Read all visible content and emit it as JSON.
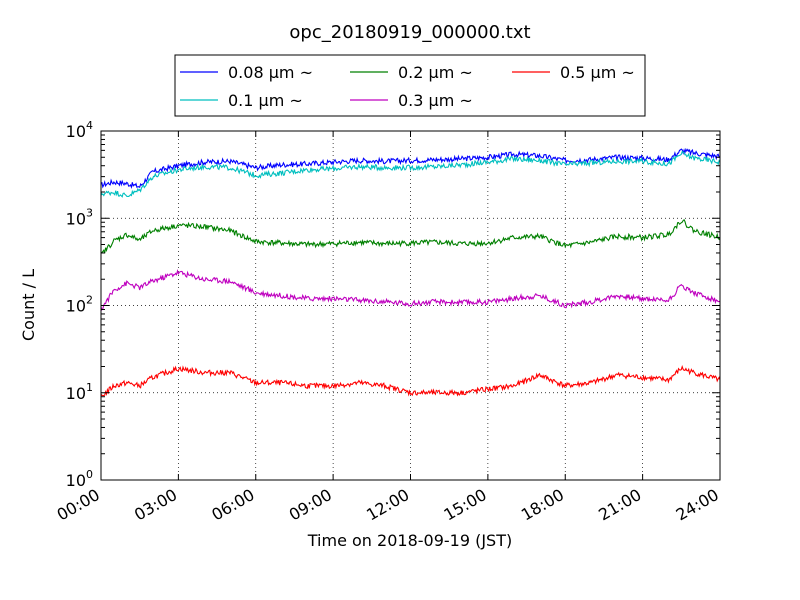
{
  "chart_data": {
    "type": "line",
    "title": "opc_20180919_000000.txt",
    "xlabel": "Time on 2018-09-19 (JST)",
    "ylabel": "Count / L",
    "x_ticks": [
      "00:00",
      "03:00",
      "06:00",
      "09:00",
      "12:00",
      "15:00",
      "18:00",
      "21:00",
      "24:00"
    ],
    "x_tick_hours": [
      0,
      3,
      6,
      9,
      12,
      15,
      18,
      21,
      24
    ],
    "xlim_hours": [
      0,
      24
    ],
    "yscale": "log",
    "ylim": [
      1,
      10000
    ],
    "y_ticks": [
      {
        "base": "10",
        "exp": "0"
      },
      {
        "base": "10",
        "exp": "1"
      },
      {
        "base": "10",
        "exp": "2"
      },
      {
        "base": "10",
        "exp": "3"
      },
      {
        "base": "10",
        "exp": "4"
      }
    ],
    "y_tick_values": [
      1,
      10,
      100,
      1000,
      10000
    ],
    "grid": true,
    "legend_position": "top",
    "series": [
      {
        "name": "0.08 μm ~",
        "color": "#0000ff",
        "x": [
          0,
          0.5,
          1,
          1.5,
          2,
          3,
          4,
          5,
          6,
          7,
          8,
          9,
          10,
          11,
          12,
          13,
          14,
          15,
          16,
          17,
          18,
          19,
          20,
          21,
          22,
          22.5,
          23,
          24
        ],
        "y": [
          2400,
          2600,
          2500,
          2300,
          3400,
          4000,
          4400,
          4500,
          3800,
          4100,
          4200,
          4400,
          4600,
          4500,
          4600,
          4700,
          4800,
          5000,
          5400,
          5200,
          4600,
          4700,
          5000,
          4900,
          4700,
          6000,
          5600,
          5100
        ]
      },
      {
        "name": "0.1 μm ~",
        "color": "#00bfbf",
        "x": [
          0,
          0.5,
          1,
          1.5,
          2,
          3,
          4,
          5,
          6,
          7,
          8,
          9,
          10,
          11,
          12,
          13,
          14,
          15,
          16,
          17,
          18,
          19,
          20,
          21,
          22,
          22.5,
          23,
          24
        ],
        "y": [
          1900,
          2000,
          1800,
          2100,
          3000,
          3600,
          3900,
          3800,
          3100,
          3300,
          3600,
          3700,
          3900,
          3800,
          3800,
          3900,
          4100,
          4400,
          4800,
          4600,
          4100,
          4300,
          4500,
          4500,
          4200,
          5500,
          4900,
          4400
        ]
      },
      {
        "name": "0.2 μm ~",
        "color": "#008000",
        "x": [
          0,
          0.5,
          1,
          1.5,
          2,
          3,
          4,
          5,
          6,
          7,
          8,
          9,
          10,
          11,
          12,
          13,
          14,
          15,
          16,
          17,
          18,
          19,
          20,
          21,
          22,
          22.5,
          23,
          24
        ],
        "y": [
          380,
          550,
          650,
          560,
          720,
          830,
          800,
          720,
          540,
          520,
          500,
          510,
          530,
          510,
          520,
          530,
          510,
          520,
          600,
          620,
          480,
          530,
          620,
          600,
          650,
          950,
          720,
          600
        ]
      },
      {
        "name": "0.3 μm ~",
        "color": "#bf00bf",
        "x": [
          0,
          0.5,
          1,
          1.5,
          2,
          3,
          4,
          5,
          6,
          7,
          8,
          9,
          10,
          11,
          12,
          13,
          14,
          15,
          16,
          17,
          18,
          19,
          20,
          21,
          22,
          22.5,
          23,
          24
        ],
        "y": [
          90,
          150,
          180,
          160,
          190,
          240,
          200,
          190,
          140,
          130,
          120,
          120,
          115,
          110,
          105,
          110,
          108,
          110,
          120,
          130,
          100,
          110,
          130,
          120,
          115,
          170,
          140,
          110
        ]
      },
      {
        "name": "0.5 μm ~",
        "color": "#ff0000",
        "x": [
          0,
          0.5,
          1,
          1.5,
          2,
          3,
          4,
          5,
          6,
          7,
          8,
          9,
          10,
          11,
          12,
          13,
          14,
          15,
          16,
          17,
          18,
          19,
          20,
          21,
          22,
          22.5,
          23,
          24
        ],
        "y": [
          9,
          12,
          13,
          12,
          15,
          19,
          17,
          17,
          13,
          13,
          12,
          12,
          13,
          12,
          10,
          10,
          10,
          11,
          12,
          16,
          12,
          13,
          16,
          15,
          14,
          19,
          17,
          14
        ]
      }
    ]
  }
}
